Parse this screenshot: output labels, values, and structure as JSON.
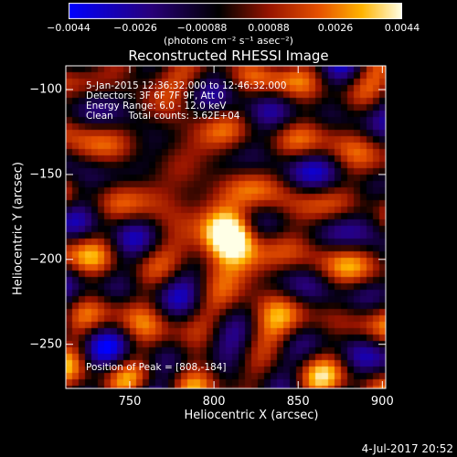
{
  "colorbar": {
    "ticks": [
      "−0.0044",
      "−0.0026",
      "−0.00088",
      "0.00088",
      "0.0026",
      "0.0044"
    ],
    "units": "(photons cm⁻² s⁻¹ asec⁻²)",
    "range": [
      -0.0044,
      0.0044
    ]
  },
  "chart_data": {
    "type": "heatmap",
    "title": "Reconstructed RHESSI Image",
    "xlabel": "Heliocentric X (arcsec)",
    "ylabel": "Heliocentric Y (arcsec)",
    "xlim": [
      712,
      902
    ],
    "ylim": [
      -276,
      -86
    ],
    "xticks": [
      750,
      800,
      850,
      900
    ],
    "yticks": [
      -100,
      -150,
      -200,
      -250
    ],
    "peak": [
      808,
      -184
    ],
    "annotations": [
      "5-Jan-2015 12:36:32.000 to 12:46:32.000",
      "Detectors: 3F 6F 7F 9F, Att 0",
      "Energy Range: 6.0 - 12.0 keV",
      "Clean     Total counts: 3.62E+04"
    ],
    "peak_label": "Position of Peak = [808,-184]"
  },
  "footer": "4-Jul-2017 20:52"
}
